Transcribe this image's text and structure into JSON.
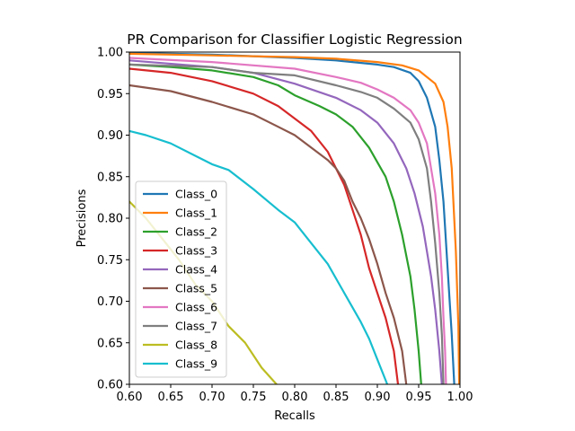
{
  "chart_data": {
    "type": "line",
    "title": "PR Comparison for Classifier Logistic Regression",
    "xlabel": "Recalls",
    "ylabel": "Precisions",
    "xlim": [
      0.6,
      1.0
    ],
    "ylim": [
      0.6,
      1.0
    ],
    "xticks": [
      "0.60",
      "0.65",
      "0.70",
      "0.75",
      "0.80",
      "0.85",
      "0.90",
      "0.95",
      "1.00"
    ],
    "yticks": [
      "0.60",
      "0.65",
      "0.70",
      "0.75",
      "0.80",
      "0.85",
      "0.90",
      "0.95",
      "1.00"
    ],
    "grid": false,
    "legend_position": "lower-left",
    "series": [
      {
        "name": "Class_0",
        "color": "#1f77b4",
        "points": [
          [
            0.6,
            0.999
          ],
          [
            0.7,
            0.997
          ],
          [
            0.8,
            0.993
          ],
          [
            0.85,
            0.99
          ],
          [
            0.9,
            0.985
          ],
          [
            0.92,
            0.982
          ],
          [
            0.94,
            0.975
          ],
          [
            0.95,
            0.965
          ],
          [
            0.96,
            0.945
          ],
          [
            0.97,
            0.91
          ],
          [
            0.975,
            0.87
          ],
          [
            0.98,
            0.82
          ],
          [
            0.985,
            0.74
          ],
          [
            0.99,
            0.66
          ],
          [
            0.993,
            0.6
          ]
        ]
      },
      {
        "name": "Class_1",
        "color": "#ff7f0e",
        "points": [
          [
            0.6,
            0.998
          ],
          [
            0.7,
            0.996
          ],
          [
            0.8,
            0.994
          ],
          [
            0.85,
            0.992
          ],
          [
            0.9,
            0.988
          ],
          [
            0.93,
            0.984
          ],
          [
            0.95,
            0.978
          ],
          [
            0.97,
            0.962
          ],
          [
            0.98,
            0.94
          ],
          [
            0.985,
            0.91
          ],
          [
            0.99,
            0.86
          ],
          [
            0.995,
            0.76
          ],
          [
            0.998,
            0.67
          ],
          [
            0.999,
            0.6
          ]
        ]
      },
      {
        "name": "Class_2",
        "color": "#2ca02c",
        "points": [
          [
            0.6,
            0.985
          ],
          [
            0.65,
            0.982
          ],
          [
            0.7,
            0.978
          ],
          [
            0.75,
            0.97
          ],
          [
            0.78,
            0.96
          ],
          [
            0.8,
            0.948
          ],
          [
            0.83,
            0.935
          ],
          [
            0.85,
            0.925
          ],
          [
            0.87,
            0.91
          ],
          [
            0.89,
            0.885
          ],
          [
            0.91,
            0.85
          ],
          [
            0.92,
            0.82
          ],
          [
            0.93,
            0.78
          ],
          [
            0.94,
            0.73
          ],
          [
            0.945,
            0.69
          ],
          [
            0.95,
            0.64
          ],
          [
            0.953,
            0.6
          ]
        ]
      },
      {
        "name": "Class_3",
        "color": "#d62728",
        "points": [
          [
            0.6,
            0.98
          ],
          [
            0.65,
            0.975
          ],
          [
            0.7,
            0.965
          ],
          [
            0.75,
            0.95
          ],
          [
            0.78,
            0.935
          ],
          [
            0.8,
            0.92
          ],
          [
            0.82,
            0.905
          ],
          [
            0.84,
            0.88
          ],
          [
            0.85,
            0.86
          ],
          [
            0.86,
            0.84
          ],
          [
            0.87,
            0.81
          ],
          [
            0.88,
            0.78
          ],
          [
            0.89,
            0.74
          ],
          [
            0.9,
            0.71
          ],
          [
            0.91,
            0.68
          ],
          [
            0.92,
            0.64
          ],
          [
            0.925,
            0.6
          ]
        ]
      },
      {
        "name": "Class_4",
        "color": "#9467bd",
        "points": [
          [
            0.6,
            0.99
          ],
          [
            0.7,
            0.982
          ],
          [
            0.75,
            0.975
          ],
          [
            0.8,
            0.962
          ],
          [
            0.85,
            0.945
          ],
          [
            0.88,
            0.93
          ],
          [
            0.9,
            0.915
          ],
          [
            0.92,
            0.89
          ],
          [
            0.935,
            0.86
          ],
          [
            0.945,
            0.83
          ],
          [
            0.955,
            0.79
          ],
          [
            0.96,
            0.76
          ],
          [
            0.965,
            0.73
          ],
          [
            0.97,
            0.69
          ],
          [
            0.975,
            0.64
          ],
          [
            0.978,
            0.6
          ]
        ]
      },
      {
        "name": "Class_5",
        "color": "#8c564b",
        "points": [
          [
            0.6,
            0.96
          ],
          [
            0.65,
            0.953
          ],
          [
            0.7,
            0.94
          ],
          [
            0.75,
            0.925
          ],
          [
            0.78,
            0.91
          ],
          [
            0.8,
            0.9
          ],
          [
            0.82,
            0.885
          ],
          [
            0.84,
            0.87
          ],
          [
            0.85,
            0.86
          ],
          [
            0.86,
            0.845
          ],
          [
            0.87,
            0.82
          ],
          [
            0.88,
            0.8
          ],
          [
            0.89,
            0.775
          ],
          [
            0.9,
            0.745
          ],
          [
            0.91,
            0.71
          ],
          [
            0.92,
            0.68
          ],
          [
            0.93,
            0.64
          ],
          [
            0.935,
            0.6
          ]
        ]
      },
      {
        "name": "Class_6",
        "color": "#e377c2",
        "points": [
          [
            0.6,
            0.993
          ],
          [
            0.7,
            0.988
          ],
          [
            0.8,
            0.98
          ],
          [
            0.85,
            0.97
          ],
          [
            0.88,
            0.963
          ],
          [
            0.9,
            0.955
          ],
          [
            0.92,
            0.945
          ],
          [
            0.94,
            0.93
          ],
          [
            0.95,
            0.915
          ],
          [
            0.96,
            0.89
          ],
          [
            0.965,
            0.86
          ],
          [
            0.97,
            0.83
          ],
          [
            0.975,
            0.78
          ],
          [
            0.978,
            0.73
          ],
          [
            0.98,
            0.68
          ],
          [
            0.982,
            0.64
          ],
          [
            0.983,
            0.6
          ]
        ]
      },
      {
        "name": "Class_7",
        "color": "#7f7f7f",
        "points": [
          [
            0.6,
            0.985
          ],
          [
            0.7,
            0.982
          ],
          [
            0.75,
            0.975
          ],
          [
            0.8,
            0.972
          ],
          [
            0.85,
            0.96
          ],
          [
            0.88,
            0.952
          ],
          [
            0.9,
            0.945
          ],
          [
            0.92,
            0.932
          ],
          [
            0.94,
            0.915
          ],
          [
            0.95,
            0.895
          ],
          [
            0.96,
            0.86
          ],
          [
            0.965,
            0.82
          ],
          [
            0.97,
            0.77
          ],
          [
            0.975,
            0.71
          ],
          [
            0.978,
            0.66
          ],
          [
            0.98,
            0.6
          ]
        ]
      },
      {
        "name": "Class_8",
        "color": "#bcbd22",
        "points": [
          [
            0.6,
            0.82
          ],
          [
            0.62,
            0.8
          ],
          [
            0.64,
            0.775
          ],
          [
            0.66,
            0.75
          ],
          [
            0.68,
            0.72
          ],
          [
            0.7,
            0.7
          ],
          [
            0.72,
            0.67
          ],
          [
            0.74,
            0.65
          ],
          [
            0.76,
            0.62
          ],
          [
            0.778,
            0.6
          ]
        ]
      },
      {
        "name": "Class_9",
        "color": "#17becf",
        "points": [
          [
            0.6,
            0.905
          ],
          [
            0.62,
            0.9
          ],
          [
            0.65,
            0.89
          ],
          [
            0.68,
            0.875
          ],
          [
            0.7,
            0.865
          ],
          [
            0.72,
            0.858
          ],
          [
            0.75,
            0.835
          ],
          [
            0.78,
            0.81
          ],
          [
            0.8,
            0.795
          ],
          [
            0.82,
            0.77
          ],
          [
            0.84,
            0.745
          ],
          [
            0.86,
            0.71
          ],
          [
            0.88,
            0.675
          ],
          [
            0.89,
            0.655
          ],
          [
            0.9,
            0.63
          ],
          [
            0.91,
            0.605
          ],
          [
            0.912,
            0.6
          ]
        ]
      }
    ]
  }
}
